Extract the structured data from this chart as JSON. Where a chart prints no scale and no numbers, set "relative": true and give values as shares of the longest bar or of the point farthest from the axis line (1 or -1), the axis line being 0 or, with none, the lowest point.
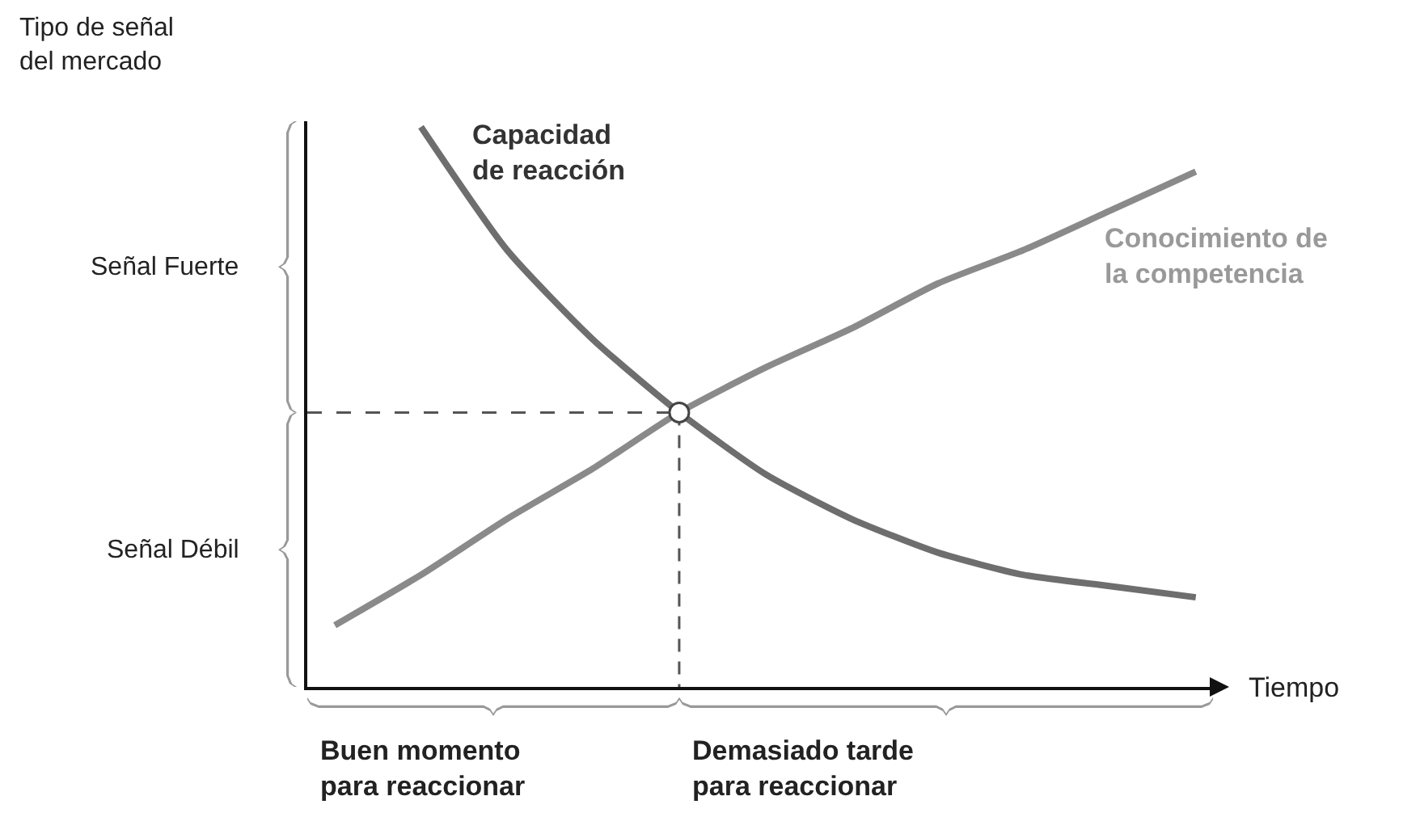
{
  "chart_data": {
    "type": "line",
    "relative": true,
    "xlabel": "Tiempo",
    "categories": [
      null,
      null,
      null,
      null,
      null,
      null,
      null,
      null,
      null,
      null,
      null
    ],
    "series": [
      {
        "name": "Capacidad\nde reacción",
        "color": "#6e6e6e",
        "values": [
          null,
          1.0,
          0.78,
          0.62,
          0.49,
          0.38,
          0.3,
          0.24,
          0.2,
          0.18,
          0.16
        ]
      },
      {
        "name": "Conocimiento de\nla competencia",
        "color": "#8a8a8a",
        "values": [
          0.11,
          0.2,
          0.3,
          0.39,
          0.49,
          0.57,
          0.64,
          0.72,
          0.78,
          0.85,
          0.92
        ]
      }
    ],
    "ref_lines": [
      {
        "axis": "y",
        "value": 0.49,
        "line_style": "dashed",
        "color": "#555555"
      }
    ],
    "annotations": [
      "Tipo de señal\ndel mercado",
      "Señal Fuerte",
      "Señal Débil",
      "Buen momento\npara reaccionar",
      "Demasiado tarde\npara reaccionar"
    ]
  }
}
